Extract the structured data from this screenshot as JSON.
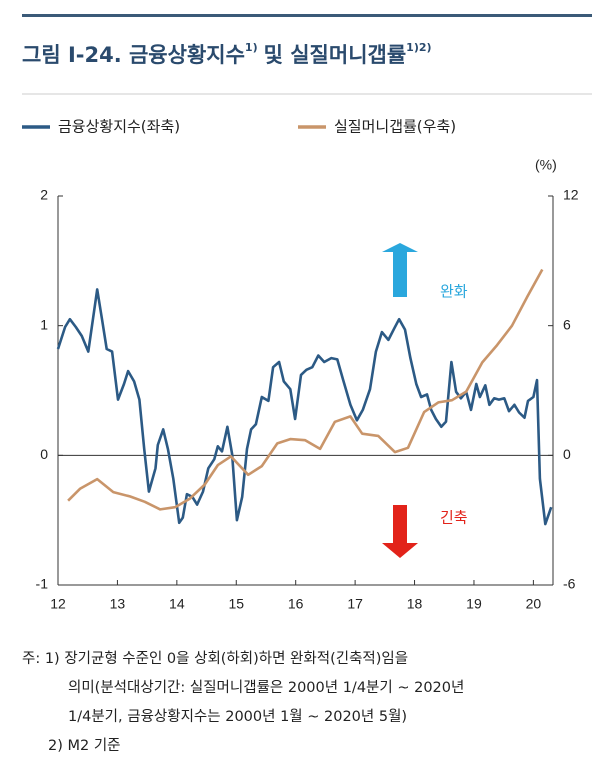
{
  "chart_data": {
    "type": "line",
    "title": "그림 Ⅰ-24. 금융상황지수",
    "title_note": "1)",
    "title_rest": "및 실질머니갭률",
    "title_rest_note": "1)2)",
    "y2_unit": "(%)",
    "annotations": [
      "완화",
      "긴축"
    ],
    "footnotes": [
      "주: 1) 장기균형 수준인 0을 상회(하회)하면 완화적(긴축적)임을",
      "의미(분석대상기간: 실질머니갭률은 2000년 1/4분기 ~ 2020년",
      "1/4분기, 금융상황지수는 2000년 1월 ~ 2020년 5월)",
      "2) M2 기준"
    ],
    "xlim": [
      12,
      20.33
    ],
    "xticks": [
      12,
      13,
      14,
      15,
      16,
      17,
      18,
      19,
      20
    ],
    "ylim": [
      -1,
      2
    ],
    "yticks": [
      -1,
      0,
      1,
      2
    ],
    "y2lim": [
      -6,
      12
    ],
    "y2ticks": [
      -6,
      0,
      6,
      12
    ],
    "legend": "top-left",
    "series": [
      {
        "name": "금융상황지수(좌축)",
        "color": "#2c5a85",
        "x": [
          12.0,
          12.12,
          12.2,
          12.3,
          12.4,
          12.51,
          12.66,
          12.74,
          12.82,
          12.91,
          13.01,
          13.11,
          13.18,
          13.28,
          13.37,
          13.45,
          13.53,
          13.64,
          13.68,
          13.77,
          13.85,
          13.94,
          14.04,
          14.1,
          14.17,
          14.26,
          14.34,
          14.44,
          14.53,
          14.63,
          14.69,
          14.76,
          14.85,
          14.93,
          15.01,
          15.1,
          15.18,
          15.25,
          15.33,
          15.43,
          15.54,
          15.62,
          15.72,
          15.8,
          15.91,
          15.99,
          16.09,
          16.18,
          16.28,
          16.38,
          16.48,
          16.6,
          16.7,
          16.8,
          16.92,
          17.03,
          17.13,
          17.25,
          17.35,
          17.45,
          17.56,
          17.66,
          17.74,
          17.84,
          17.93,
          18.03,
          18.11,
          18.21,
          18.28,
          18.36,
          18.45,
          18.53,
          18.62,
          18.7,
          18.78,
          18.87,
          18.95,
          19.04,
          19.1,
          19.19,
          19.26,
          19.34,
          19.42,
          19.51,
          19.59,
          19.68,
          19.76,
          19.85,
          19.91,
          20.0,
          20.06,
          20.11,
          20.2,
          20.3
        ],
        "values": [
          0.82,
          0.99,
          1.05,
          0.99,
          0.92,
          0.8,
          1.28,
          1.05,
          0.82,
          0.8,
          0.43,
          0.55,
          0.65,
          0.57,
          0.43,
          0.05,
          -0.28,
          -0.1,
          0.08,
          0.2,
          0.05,
          -0.18,
          -0.52,
          -0.48,
          -0.3,
          -0.32,
          -0.38,
          -0.28,
          -0.1,
          -0.03,
          0.07,
          0.03,
          0.22,
          0.01,
          -0.5,
          -0.32,
          0.05,
          0.2,
          0.24,
          0.45,
          0.42,
          0.68,
          0.72,
          0.57,
          0.51,
          0.28,
          0.62,
          0.66,
          0.68,
          0.77,
          0.72,
          0.75,
          0.74,
          0.58,
          0.39,
          0.27,
          0.35,
          0.51,
          0.8,
          0.95,
          0.89,
          0.98,
          1.05,
          0.97,
          0.75,
          0.55,
          0.45,
          0.47,
          0.35,
          0.28,
          0.22,
          0.26,
          0.72,
          0.49,
          0.44,
          0.49,
          0.35,
          0.55,
          0.45,
          0.54,
          0.39,
          0.44,
          0.43,
          0.44,
          0.34,
          0.39,
          0.33,
          0.29,
          0.42,
          0.45,
          0.58,
          -0.18,
          -0.53,
          -0.4
        ]
      },
      {
        "name": "실질머니갭률(우축)",
        "color": "#c9956a",
        "axis": "y2",
        "x": [
          12.17,
          12.37,
          12.66,
          12.93,
          13.21,
          13.46,
          13.72,
          13.97,
          14.22,
          14.47,
          14.69,
          14.91,
          15.2,
          15.43,
          15.69,
          15.91,
          16.16,
          16.41,
          16.66,
          16.92,
          17.12,
          17.39,
          17.67,
          17.89,
          18.16,
          18.4,
          18.63,
          18.87,
          19.14,
          19.39,
          19.64,
          19.9,
          20.15
        ],
        "values": [
          -2.1,
          -1.55,
          -1.1,
          -1.7,
          -1.9,
          -2.15,
          -2.5,
          -2.4,
          -2.0,
          -1.35,
          -0.45,
          -0.05,
          -0.9,
          -0.5,
          0.55,
          0.75,
          0.7,
          0.3,
          1.55,
          1.8,
          1.0,
          0.9,
          0.15,
          0.35,
          2.0,
          2.45,
          2.55,
          2.95,
          4.3,
          5.1,
          6.0,
          7.35,
          8.6
        ]
      }
    ]
  }
}
